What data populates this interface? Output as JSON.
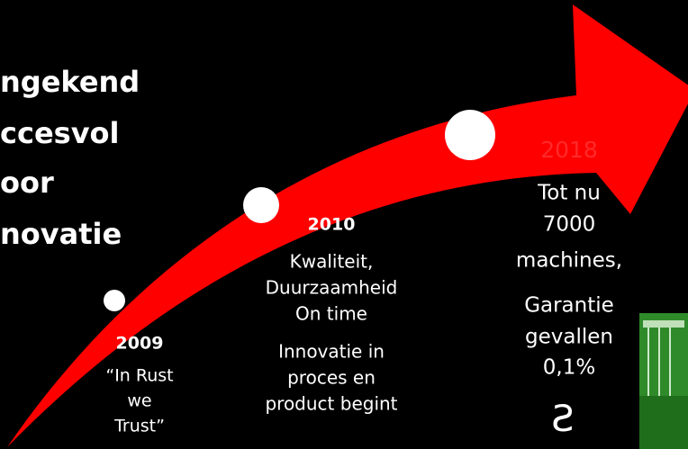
{
  "title": {
    "lines": [
      "ngekend",
      "ccesvol",
      "oor",
      "novatie"
    ]
  },
  "milestones": [
    {
      "year": "2009",
      "groups": [
        [
          "“In Rust",
          "we",
          "Trust”"
        ]
      ]
    },
    {
      "year": "2010",
      "groups": [
        [
          "Kwaliteit,",
          "Duurzaamheid",
          "On time"
        ],
        [
          "Innovatie in",
          "proces en",
          "product begint"
        ]
      ]
    },
    {
      "year": "2018",
      "groups": [
        [
          "Tot nu",
          "7000",
          "machines,"
        ],
        [
          "Garantie",
          "gevallen",
          "0,1%"
        ]
      ]
    }
  ],
  "symbol": "Ƨ"
}
